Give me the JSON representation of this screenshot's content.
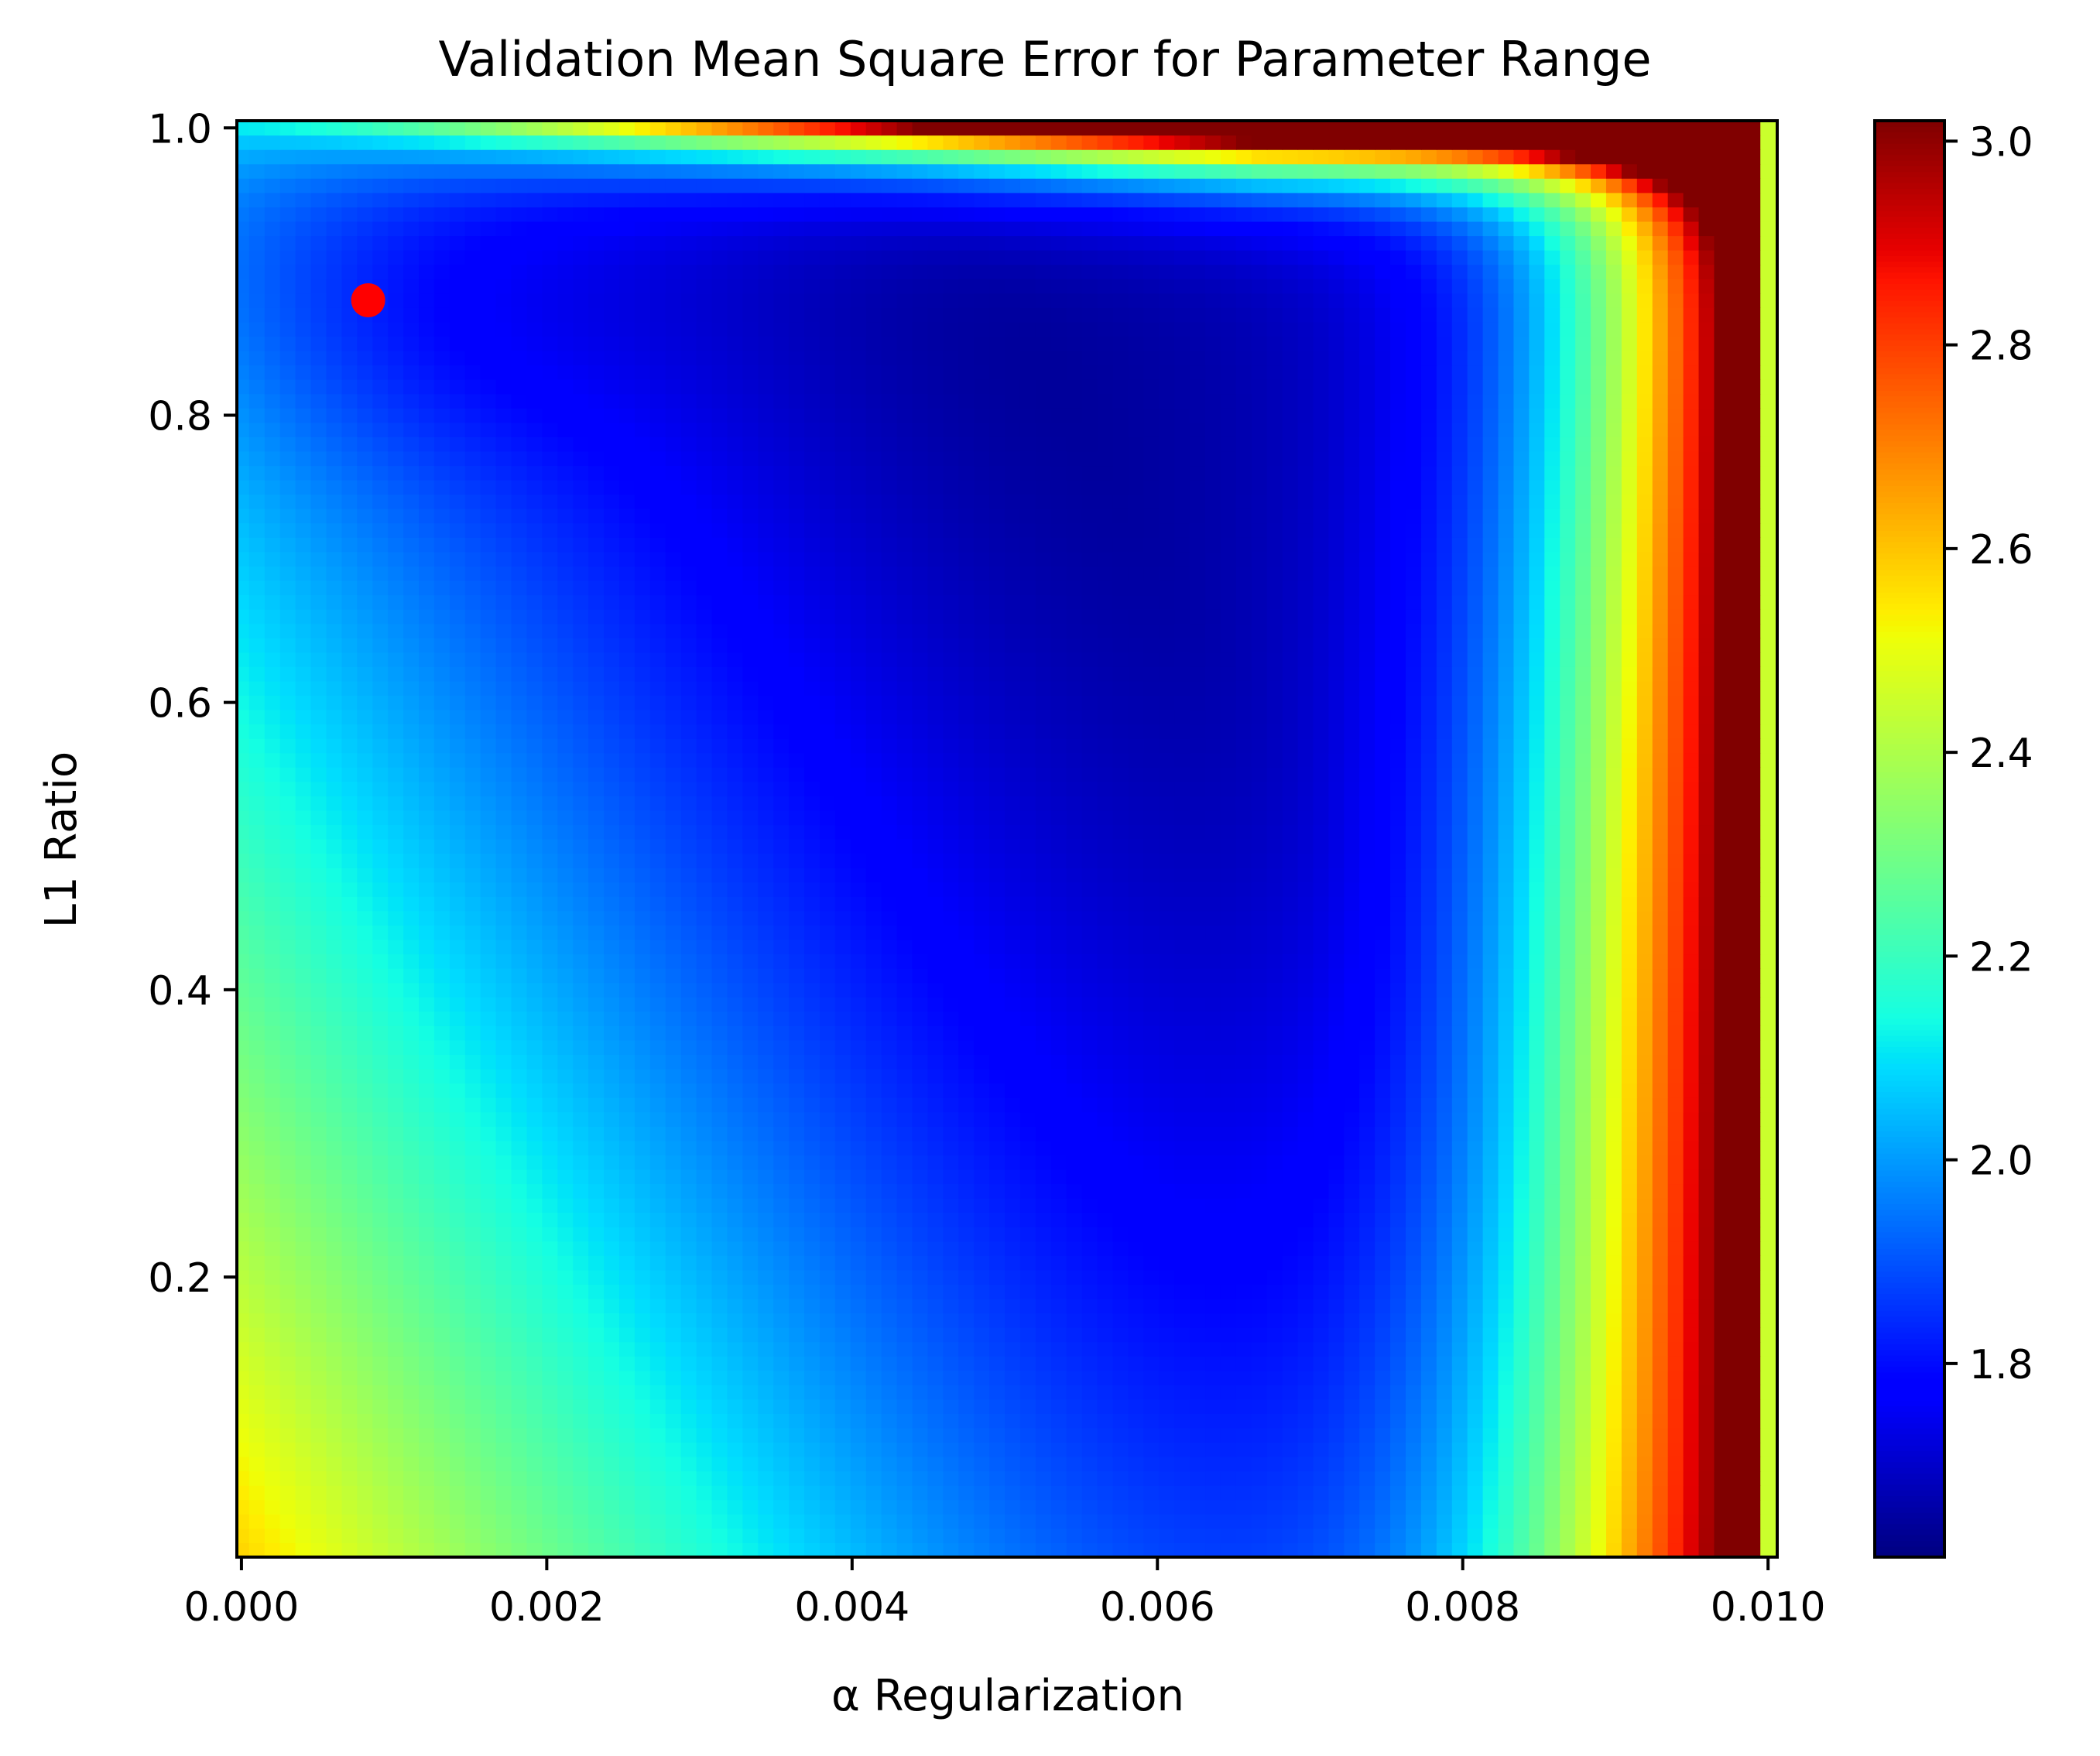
{
  "chart_data": {
    "type": "heatmap",
    "title": "Validation Mean Square Error for Parameter Range",
    "xlabel": "α Regularization",
    "ylabel": "L1 Ratio",
    "xlim": [
      -3e-05,
      0.01006
    ],
    "ylim": [
      0.005,
      1.005
    ],
    "x_grid_range": [
      0.0,
      0.01
    ],
    "y_grid_range": [
      0.01,
      1.0
    ],
    "grid_cols": 100,
    "grid_rows": 100,
    "x_ticks": [
      {
        "value": 0.0,
        "label": "0.000"
      },
      {
        "value": 0.002,
        "label": "0.002"
      },
      {
        "value": 0.004,
        "label": "0.004"
      },
      {
        "value": 0.006,
        "label": "0.006"
      },
      {
        "value": 0.008,
        "label": "0.008"
      },
      {
        "value": 0.01,
        "label": "0.010"
      }
    ],
    "y_ticks": [
      {
        "value": 0.2,
        "label": "0.2"
      },
      {
        "value": 0.4,
        "label": "0.4"
      },
      {
        "value": 0.6,
        "label": "0.6"
      },
      {
        "value": 0.8,
        "label": "0.8"
      },
      {
        "value": 1.0,
        "label": "1.0"
      }
    ],
    "colormap": "jet",
    "color_range": [
      1.61,
      3.02
    ],
    "colorbar_ticks": [
      {
        "value": 1.8,
        "label": "1.8"
      },
      {
        "value": 2.0,
        "label": "2.0"
      },
      {
        "value": 2.2,
        "label": "2.2"
      },
      {
        "value": 2.4,
        "label": "2.4"
      },
      {
        "value": 2.6,
        "label": "2.6"
      },
      {
        "value": 2.8,
        "label": "2.8"
      },
      {
        "value": 3.0,
        "label": "3.0"
      }
    ],
    "optimum_marker": {
      "x": 0.00083,
      "y": 0.88,
      "color": "#ff0000"
    },
    "grid": false
  }
}
